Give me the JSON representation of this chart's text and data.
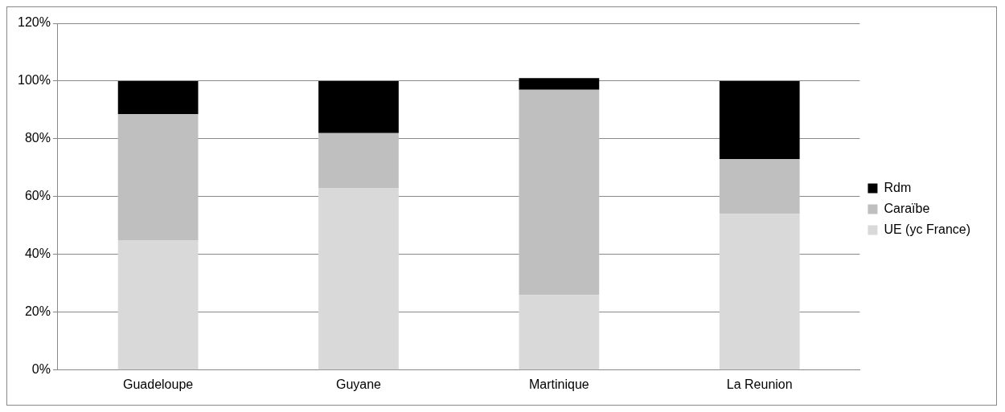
{
  "chart_data": {
    "type": "bar",
    "stacked": true,
    "categories": [
      "Guadeloupe",
      "Guyane",
      "Martinique",
      "La Reunion"
    ],
    "series": [
      {
        "name": "UE (yc France)",
        "color": "#d9d9d9",
        "values": [
          45,
          63,
          26,
          54
        ]
      },
      {
        "name": "Caraïbe",
        "color": "#bfbfbf",
        "values": [
          43.5,
          19,
          71,
          19
        ]
      },
      {
        "name": "Rdm",
        "color": "#000000",
        "values": [
          11.5,
          18,
          4,
          27
        ]
      }
    ],
    "ylim": [
      0,
      120
    ],
    "yticks": [
      {
        "value": 0,
        "label": "0%"
      },
      {
        "value": 20,
        "label": "20%"
      },
      {
        "value": 40,
        "label": "40%"
      },
      {
        "value": 60,
        "label": "60%"
      },
      {
        "value": 80,
        "label": "80%"
      },
      {
        "value": 100,
        "label": "100%"
      },
      {
        "value": 120,
        "label": "120%"
      }
    ],
    "grid": "y",
    "legend": "right"
  }
}
